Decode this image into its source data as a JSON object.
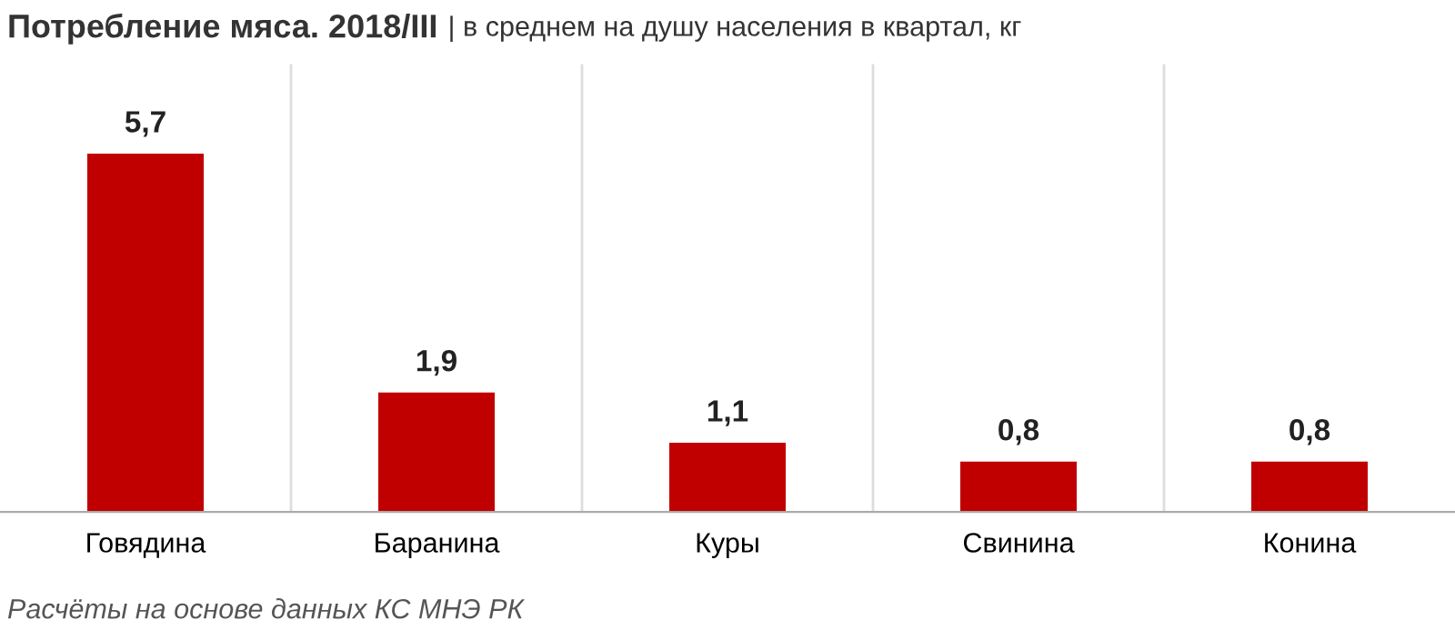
{
  "chart_data": {
    "type": "bar",
    "title": "Потребление мяса. 2018/III",
    "subtitle": "| в среднем на душу населения в квартал, кг",
    "categories": [
      "Говядина",
      "Баранина",
      "Куры",
      "Свинина",
      "Конина"
    ],
    "values": [
      5.7,
      1.9,
      1.1,
      0.8,
      0.8
    ],
    "color": "#c00000",
    "value_labels": [
      "5,7",
      "1,9",
      "1,1",
      "0,8",
      "0,8"
    ],
    "annotations": [
      "Расчёты на основе данных КС МНЭ РК"
    ]
  }
}
